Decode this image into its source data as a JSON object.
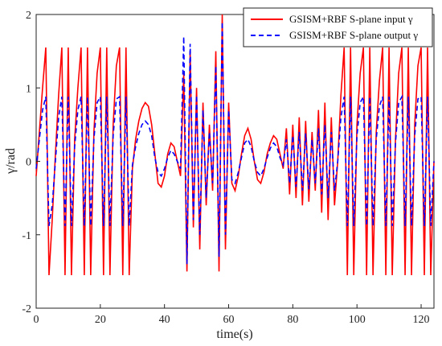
{
  "chart_data": {
    "type": "line",
    "xlabel": "time(s)",
    "ylabel": "γ/rad",
    "xlim": [
      0,
      124
    ],
    "ylim": [
      -2,
      2
    ],
    "xticks": [
      0,
      20,
      40,
      60,
      80,
      100,
      120
    ],
    "yticks": [
      -2,
      -1,
      0,
      1,
      2
    ],
    "grid": false,
    "legend": {
      "position": "top-right",
      "entries": [
        "GSISM+RBF S-plane input γ",
        "GSISM+RBF S-plane output γ"
      ]
    },
    "series": [
      {
        "name": "GSISM+RBF S-plane input γ",
        "color": "#ff0000",
        "style": "solid",
        "x": [
          0,
          1,
          2,
          3,
          4,
          5,
          6,
          7,
          8,
          9,
          10,
          11,
          12,
          13,
          14,
          15,
          16,
          17,
          18,
          19,
          20,
          21,
          22,
          23,
          24,
          25,
          26,
          27,
          28,
          29,
          30,
          31,
          32,
          33,
          34,
          35,
          36,
          37,
          38,
          39,
          40,
          41,
          42,
          43,
          44,
          45,
          46,
          47,
          48,
          49,
          50,
          51,
          52,
          53,
          54,
          55,
          56,
          57,
          58,
          59,
          60,
          61,
          62,
          63,
          64,
          65,
          66,
          67,
          68,
          69,
          70,
          71,
          72,
          73,
          74,
          75,
          76,
          77,
          78,
          79,
          80,
          81,
          82,
          83,
          84,
          85,
          86,
          87,
          88,
          89,
          90,
          91,
          92,
          93,
          94,
          95,
          96,
          97,
          98,
          99,
          100,
          101,
          102,
          103,
          104,
          105,
          106,
          107,
          108,
          109,
          110,
          111,
          112,
          113,
          114,
          115,
          116,
          117,
          118,
          119,
          120,
          121,
          122,
          123,
          124
        ],
        "y": [
          -0.2,
          0.4,
          1.0,
          1.55,
          -1.55,
          -0.8,
          0.1,
          0.9,
          1.55,
          -1.55,
          1.55,
          -1.55,
          0.3,
          1.0,
          1.55,
          -1.55,
          1.55,
          -1.55,
          0.4,
          1.2,
          1.55,
          -1.55,
          1.55,
          -1.55,
          0.5,
          1.3,
          1.55,
          -1.55,
          1.55,
          -1.55,
          -0.1,
          0.3,
          0.55,
          0.72,
          0.8,
          0.75,
          0.5,
          0.1,
          -0.3,
          -0.35,
          -0.2,
          0.1,
          0.25,
          0.2,
          0.0,
          -0.2,
          1.2,
          -1.5,
          1.5,
          -0.9,
          1.0,
          -1.2,
          0.8,
          -0.6,
          0.5,
          -0.4,
          1.5,
          -1.5,
          2.0,
          -1.2,
          0.8,
          -0.3,
          -0.4,
          -0.2,
          0.1,
          0.35,
          0.45,
          0.3,
          0.0,
          -0.25,
          -0.3,
          -0.15,
          0.1,
          0.25,
          0.35,
          0.3,
          0.1,
          -0.1,
          0.45,
          -0.45,
          0.5,
          -0.5,
          0.6,
          -0.6,
          0.55,
          -0.55,
          0.4,
          -0.4,
          0.7,
          -0.7,
          0.8,
          -0.8,
          0.6,
          -0.6,
          0.0,
          0.9,
          1.55,
          -1.55,
          1.55,
          -1.55,
          0.5,
          1.2,
          1.55,
          -1.55,
          1.55,
          -1.55,
          0.4,
          1.1,
          1.55,
          -1.55,
          1.55,
          -1.55,
          0.3,
          1.2,
          1.55,
          -1.55,
          1.55,
          -1.55,
          0.5,
          1.3,
          1.55,
          -1.55,
          1.55,
          -1.55,
          0.0
        ]
      },
      {
        "name": "GSISM+RBF S-plane output γ",
        "color": "#0000ff",
        "style": "dashed",
        "x": [
          0,
          1,
          2,
          3,
          4,
          5,
          6,
          7,
          8,
          9,
          10,
          11,
          12,
          13,
          14,
          15,
          16,
          17,
          18,
          19,
          20,
          21,
          22,
          23,
          24,
          25,
          26,
          27,
          28,
          29,
          30,
          31,
          32,
          33,
          34,
          35,
          36,
          37,
          38,
          39,
          40,
          41,
          42,
          43,
          44,
          45,
          46,
          47,
          48,
          49,
          50,
          51,
          52,
          53,
          54,
          55,
          56,
          57,
          58,
          59,
          60,
          61,
          62,
          63,
          64,
          65,
          66,
          67,
          68,
          69,
          70,
          71,
          72,
          73,
          74,
          75,
          76,
          77,
          78,
          79,
          80,
          81,
          82,
          83,
          84,
          85,
          86,
          87,
          88,
          89,
          90,
          91,
          92,
          93,
          94,
          95,
          96,
          97,
          98,
          99,
          100,
          101,
          102,
          103,
          104,
          105,
          106,
          107,
          108,
          109,
          110,
          111,
          112,
          113,
          114,
          115,
          116,
          117,
          118,
          119,
          120,
          121,
          122,
          123,
          124
        ],
        "y": [
          -0.1,
          0.3,
          0.7,
          0.88,
          -0.88,
          -0.6,
          0.0,
          0.6,
          0.88,
          -0.88,
          0.88,
          -0.88,
          0.2,
          0.7,
          0.88,
          -0.88,
          0.88,
          -0.88,
          0.3,
          0.8,
          0.88,
          -0.88,
          0.88,
          -0.88,
          0.35,
          0.85,
          0.88,
          -0.88,
          0.88,
          -0.88,
          -0.05,
          0.2,
          0.38,
          0.5,
          0.55,
          0.5,
          0.35,
          0.05,
          -0.15,
          -0.2,
          -0.1,
          0.05,
          0.15,
          0.1,
          0.0,
          -0.1,
          1.7,
          -1.4,
          1.6,
          -0.8,
          0.9,
          -1.0,
          0.7,
          -0.5,
          0.4,
          -0.3,
          1.3,
          -1.3,
          1.9,
          -1.0,
          0.7,
          -0.25,
          -0.3,
          -0.15,
          0.05,
          0.25,
          0.3,
          0.2,
          0.0,
          -0.15,
          -0.2,
          -0.1,
          0.05,
          0.18,
          0.25,
          0.2,
          0.05,
          -0.05,
          0.3,
          -0.3,
          0.35,
          -0.35,
          0.4,
          -0.4,
          0.38,
          -0.38,
          0.3,
          -0.3,
          0.45,
          -0.45,
          0.5,
          -0.5,
          0.4,
          -0.4,
          0.0,
          0.6,
          0.88,
          -0.88,
          0.88,
          -0.88,
          0.35,
          0.8,
          0.88,
          -0.88,
          0.88,
          -0.88,
          0.3,
          0.75,
          0.88,
          -0.88,
          0.88,
          -0.88,
          0.25,
          0.8,
          0.88,
          -0.88,
          0.88,
          -0.88,
          0.35,
          0.85,
          0.88,
          -0.88,
          0.88,
          -0.88,
          0.0
        ]
      }
    ]
  }
}
